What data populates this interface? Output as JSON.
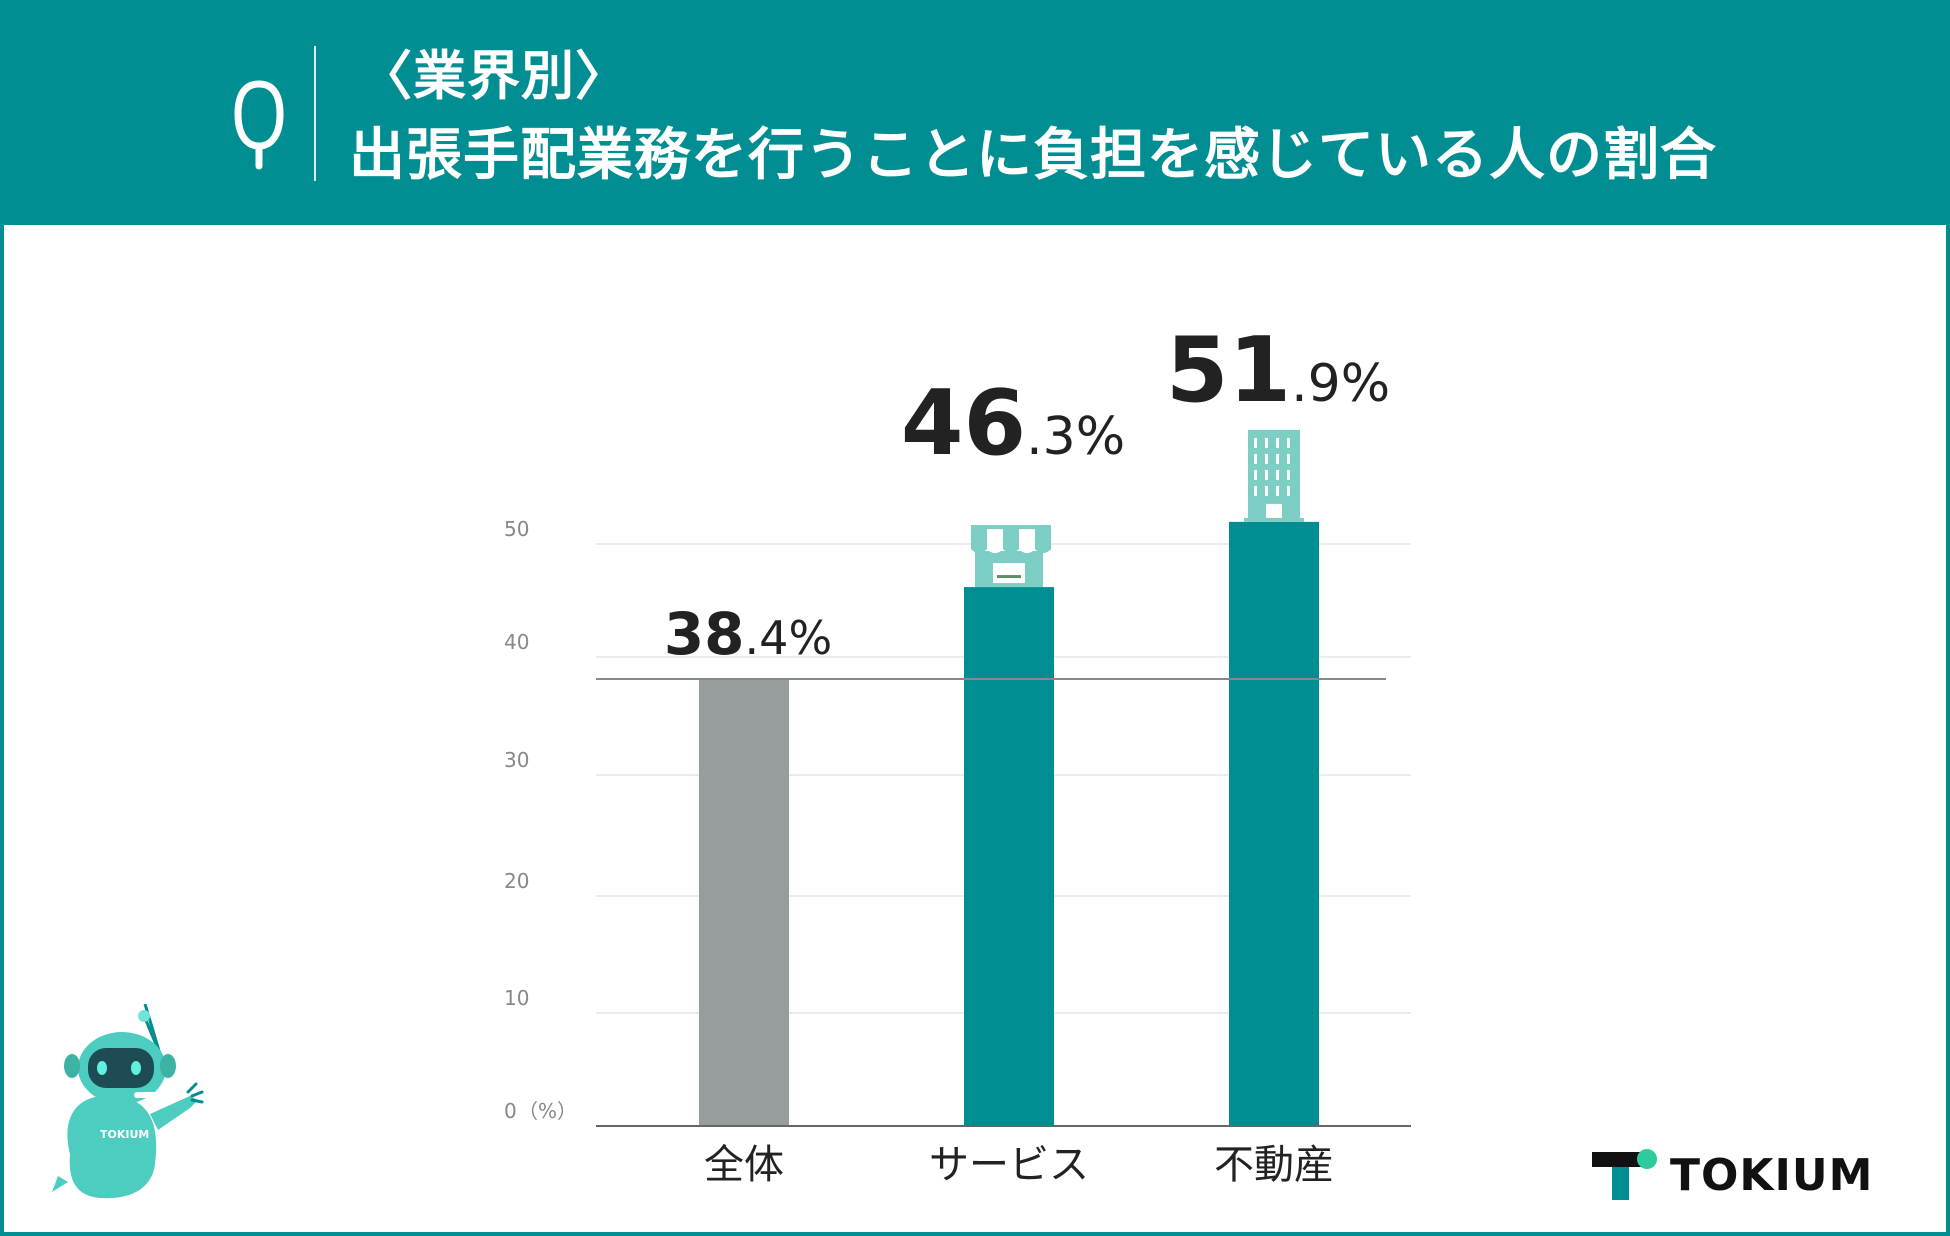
{
  "header": {
    "q_icon": "q-letter-icon",
    "subtitle": "〈業界別〉",
    "title": "出張手配業務を行うことに負担を感じている人の割合"
  },
  "chart_data": {
    "type": "bar",
    "categories": [
      "全体",
      "サービス",
      "不動産"
    ],
    "values": [
      38.4,
      46.3,
      51.9
    ],
    "value_labels": [
      {
        "int": "38",
        "dec": ".4",
        "unit": "%"
      },
      {
        "int": "46",
        "dec": ".3",
        "unit": "%"
      },
      {
        "int": "51",
        "dec": ".9",
        "unit": "%"
      }
    ],
    "yticks": [
      "0",
      "10",
      "20",
      "30",
      "40",
      "50"
    ],
    "y_unit_label": "（%）",
    "ylim": [
      0,
      53
    ],
    "grid": true,
    "reference_line": 38.4,
    "bar_colors": [
      "#979c9c",
      "#018e93",
      "#018e93"
    ],
    "category_icons": [
      "",
      "storefront-icon",
      "office-building-icon"
    ]
  },
  "colors": {
    "accent": "#018e93",
    "bar_overall": "#979c9c",
    "icon_teal": "#7ccdc4",
    "text_dark": "#222222",
    "tick_gray": "#888888"
  },
  "footer": {
    "logo_text": "TOKIUM",
    "logo_icon": "tokium-logo-icon",
    "mascot_icon": "robot-mascot-icon",
    "mascot_badge": "TOKIUM"
  }
}
